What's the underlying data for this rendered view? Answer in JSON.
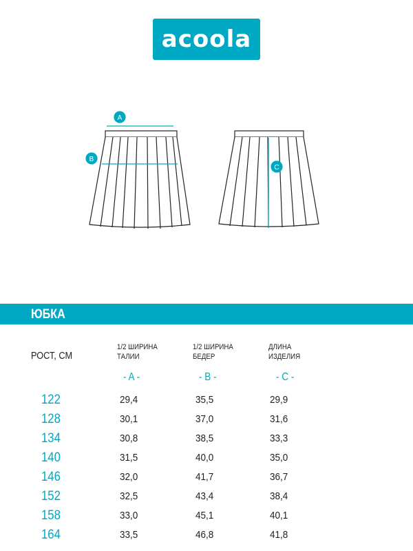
{
  "brand": {
    "logo_text": "acoola",
    "color": "#00a9c3"
  },
  "diagram": {
    "markers": [
      "A",
      "B",
      "C"
    ]
  },
  "section_title": "ЮБКА",
  "table": {
    "headers": {
      "height": "РОСТ, СМ",
      "a_line1": "1/2 ШИРИНА",
      "a_line2": "ТАЛИИ",
      "b_line1": "1/2 ШИРИНА",
      "b_line2": "БЕДЕР",
      "c_line1": "ДЛИНА",
      "c_line2": "ИЗДЕЛИЯ"
    },
    "codes": [
      "- A -",
      "- B -",
      "- C -"
    ],
    "rows": [
      {
        "height": "122",
        "a": "29,4",
        "b": "35,5",
        "c": "29,9"
      },
      {
        "height": "128",
        "a": "30,1",
        "b": "37,0",
        "c": "31,6"
      },
      {
        "height": "134",
        "a": "30,8",
        "b": "38,5",
        "c": "33,3"
      },
      {
        "height": "140",
        "a": "31,5",
        "b": "40,0",
        "c": "35,0"
      },
      {
        "height": "146",
        "a": "32,0",
        "b": "41,7",
        "c": "36,7"
      },
      {
        "height": "152",
        "a": "32,5",
        "b": "43,4",
        "c": "38,4"
      },
      {
        "height": "158",
        "a": "33,0",
        "b": "45,1",
        "c": "40,1"
      },
      {
        "height": "164",
        "a": "33,5",
        "b": "46,8",
        "c": "41,8"
      }
    ]
  }
}
